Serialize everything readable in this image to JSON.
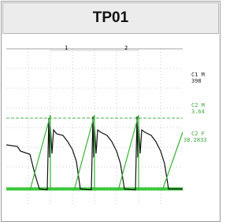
{
  "header": {
    "title": "TP01"
  },
  "scope": {
    "cursors": [
      "1",
      "2"
    ],
    "readouts": [
      {
        "label": "C1 M",
        "value": "398"
      },
      {
        "label": "C2 M",
        "value": "3.64"
      },
      {
        "label": "C2 F",
        "value": "38.2833"
      }
    ]
  }
}
